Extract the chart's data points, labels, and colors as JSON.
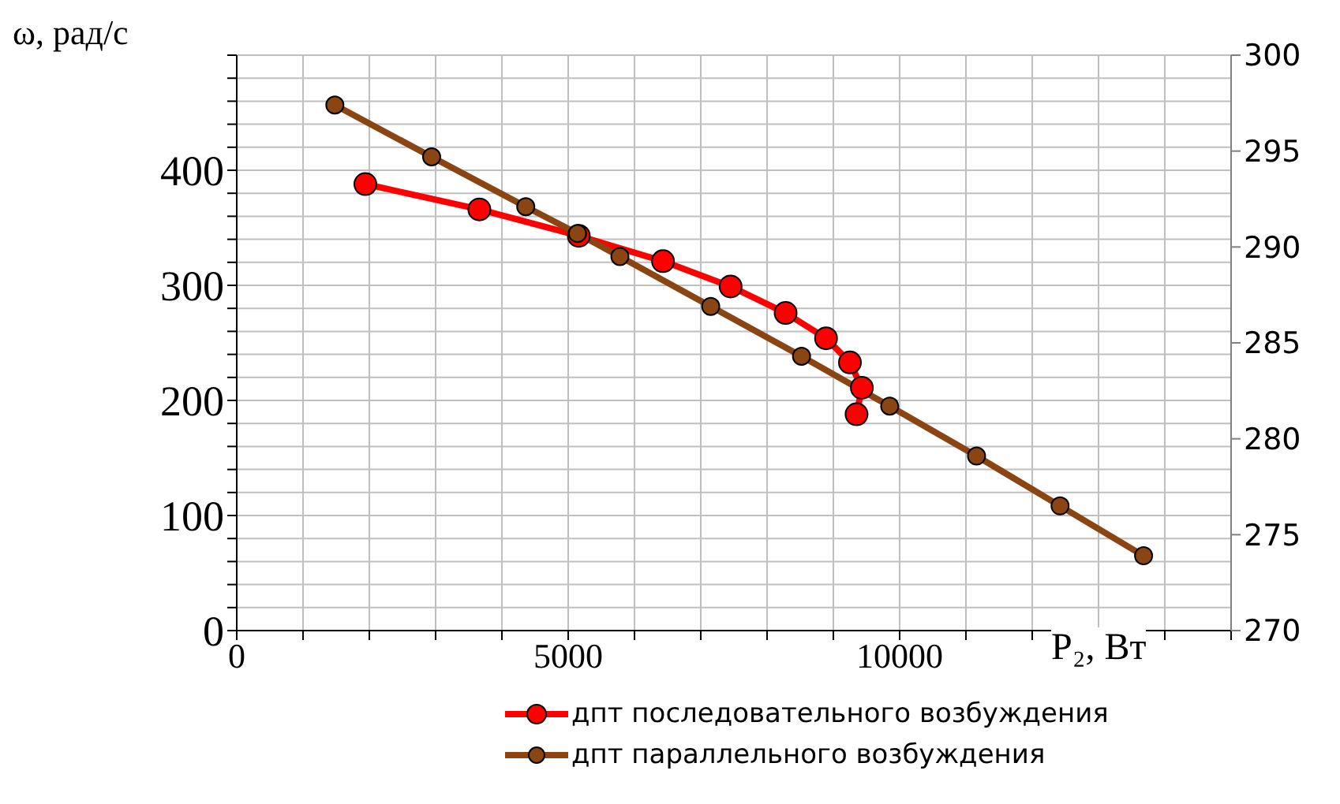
{
  "chart_data": {
    "type": "line",
    "xlabel": "P₂, Вт",
    "ylabel": "ω, рад/с",
    "xlim": [
      0,
      15000
    ],
    "xticks": [
      0,
      {
        "value": 1000,
        "label": null
      },
      {
        "value": 2000,
        "label": null
      },
      {
        "value": 3000,
        "label": null
      },
      {
        "value": 4000,
        "label": null
      },
      5000,
      {
        "value": 6000,
        "label": null
      },
      {
        "value": 7000,
        "label": null
      },
      {
        "value": 8000,
        "label": null
      },
      {
        "value": 9000,
        "label": null
      },
      10000,
      {
        "value": 11000,
        "label": null
      },
      {
        "value": 12000,
        "label": null
      },
      {
        "value": 13000,
        "label": null
      },
      {
        "value": 14000,
        "label": null
      },
      {
        "value": 15000,
        "label": null
      }
    ],
    "ylim": [
      0,
      500
    ],
    "yticks": [
      0,
      {
        "value": 20,
        "label": null
      },
      {
        "value": 40,
        "label": null
      },
      {
        "value": 60,
        "label": null
      },
      {
        "value": 80,
        "label": null
      },
      100,
      {
        "value": 120,
        "label": null
      },
      {
        "value": 140,
        "label": null
      },
      {
        "value": 160,
        "label": null
      },
      {
        "value": 180,
        "label": null
      },
      200,
      {
        "value": 220,
        "label": null
      },
      {
        "value": 240,
        "label": null
      },
      {
        "value": 260,
        "label": null
      },
      {
        "value": 280,
        "label": null
      },
      300,
      {
        "value": 320,
        "label": null
      },
      {
        "value": 340,
        "label": null
      },
      {
        "value": 360,
        "label": null
      },
      {
        "value": 380,
        "label": null
      },
      400,
      {
        "value": 420,
        "label": null
      },
      {
        "value": 440,
        "label": null
      },
      {
        "value": 460,
        "label": null
      },
      {
        "value": 480,
        "label": null
      },
      {
        "value": 500,
        "label": null
      }
    ],
    "y2lim": [
      270,
      300
    ],
    "y2ticks": [
      270,
      275,
      280,
      285,
      290,
      295,
      300
    ],
    "grid": true,
    "legend": "bottom",
    "marker": "circle",
    "line_style": "solid",
    "series": [
      {
        "name": "дпт последовательного возбуждения",
        "color": "#ff0000",
        "x": [
          1940,
          3660,
          5160,
          6430,
          7450,
          8280,
          8890,
          9250,
          9430,
          9350
        ],
        "values": [
          388,
          366,
          343,
          321,
          299,
          276,
          254,
          233,
          211,
          188
        ]
      },
      {
        "name": "дпт параллельного возбуждения",
        "color": "#8b4513",
        "axis": "y2",
        "x": [
          1480,
          2940,
          4360,
          5140,
          5780,
          7150,
          8520,
          9850,
          11160,
          12420,
          13680
        ],
        "values": [
          297.4,
          294.7,
          292.1,
          290.7,
          289.5,
          286.9,
          284.3,
          281.7,
          279.1,
          276.5,
          273.9
        ]
      }
    ]
  }
}
